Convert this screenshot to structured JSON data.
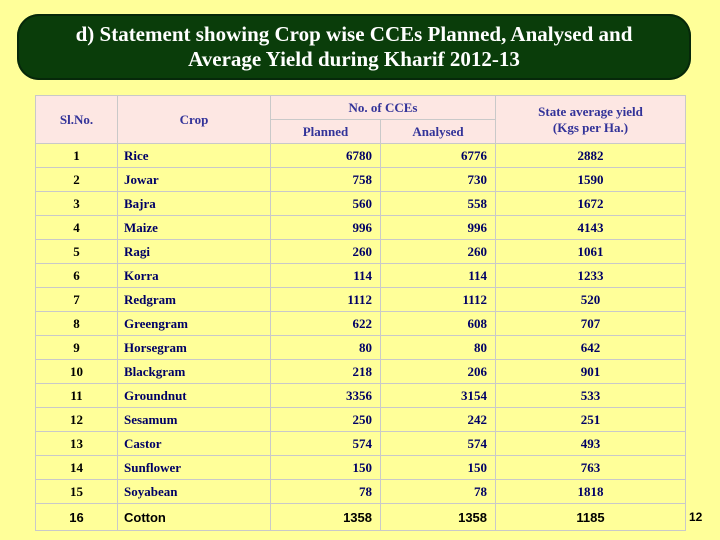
{
  "title": {
    "line1": "d) Statement showing Crop wise CCEs Planned, Analysed and",
    "line2": "Average Yield during Kharif 2012-13"
  },
  "table": {
    "headers": {
      "sl_no": "Sl.No.",
      "crop": "Crop",
      "no_of_cces": "No. of CCEs",
      "planned": "Planned",
      "analysed": "Analysed",
      "avg_yield_line1": "State average yield",
      "avg_yield_line2": "(Kgs per Ha.)"
    },
    "rows": [
      {
        "sl": "1",
        "crop": "Rice",
        "planned": "6780",
        "analysed": "6776",
        "avg": "2882"
      },
      {
        "sl": "2",
        "crop": "Jowar",
        "planned": "758",
        "analysed": "730",
        "avg": "1590"
      },
      {
        "sl": "3",
        "crop": "Bajra",
        "planned": "560",
        "analysed": "558",
        "avg": "1672"
      },
      {
        "sl": "4",
        "crop": "Maize",
        "planned": "996",
        "analysed": "996",
        "avg": "4143"
      },
      {
        "sl": "5",
        "crop": "Ragi",
        "planned": "260",
        "analysed": "260",
        "avg": "1061"
      },
      {
        "sl": "6",
        "crop": "Korra",
        "planned": "114",
        "analysed": "114",
        "avg": "1233"
      },
      {
        "sl": "7",
        "crop": "Redgram",
        "planned": "1112",
        "analysed": "1112",
        "avg": "520"
      },
      {
        "sl": "8",
        "crop": "Greengram",
        "planned": "622",
        "analysed": "608",
        "avg": "707"
      },
      {
        "sl": "9",
        "crop": "Horsegram",
        "planned": "80",
        "analysed": "80",
        "avg": "642"
      },
      {
        "sl": "10",
        "crop": "Blackgram",
        "planned": "218",
        "analysed": "206",
        "avg": "901"
      },
      {
        "sl": "11",
        "crop": "Groundnut",
        "planned": "3356",
        "analysed": "3154",
        "avg": "533"
      },
      {
        "sl": "12",
        "crop": "Sesamum",
        "planned": "250",
        "analysed": "242",
        "avg": "251"
      },
      {
        "sl": "13",
        "crop": "Castor",
        "planned": "574",
        "analysed": "574",
        "avg": "493"
      },
      {
        "sl": "14",
        "crop": "Sunflower",
        "planned": "150",
        "analysed": "150",
        "avg": "763"
      },
      {
        "sl": "15",
        "crop": "Soyabean",
        "planned": "78",
        "analysed": "78",
        "avg": "1818"
      },
      {
        "sl": "16",
        "crop": "Cotton",
        "planned": "1358",
        "analysed": "1358",
        "avg": "1185"
      }
    ]
  },
  "page_number": "12",
  "colors": {
    "background": "#ffff99",
    "title_box": "#0a3d0a",
    "header_bg": "#fde7e3",
    "header_text": "#333399",
    "cell_text": "#000066"
  }
}
